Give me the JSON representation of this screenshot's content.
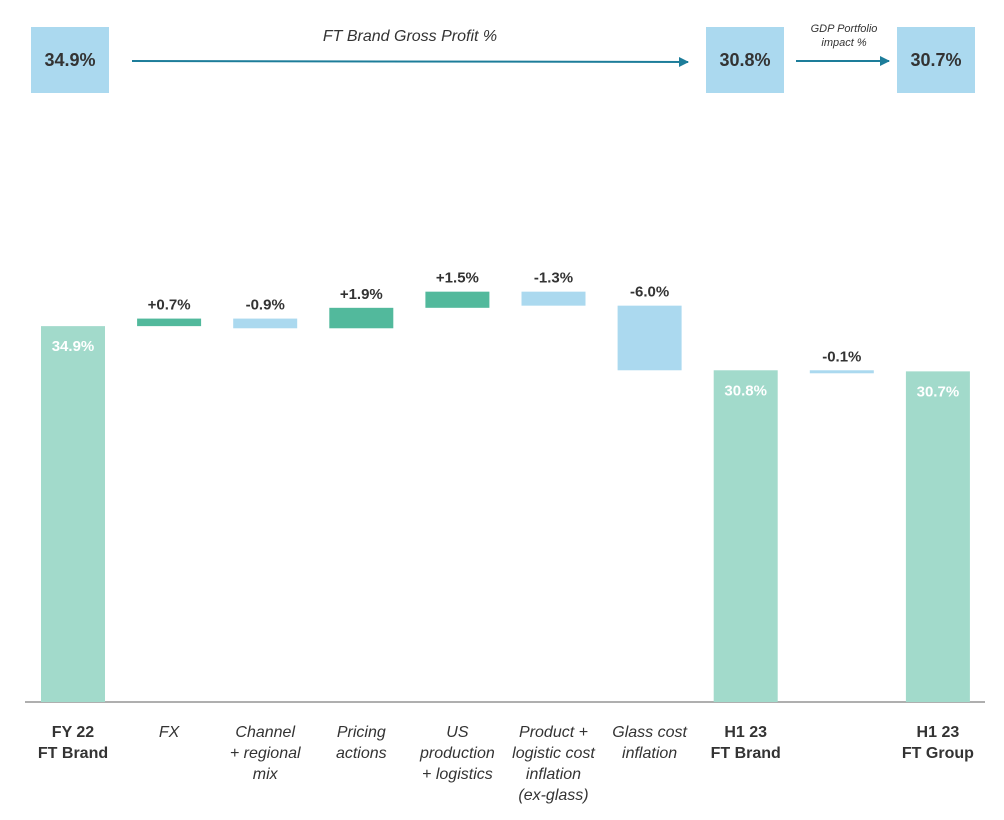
{
  "header": {
    "start_value": "34.9%",
    "brand_caption": "FT Brand Gross Profit %",
    "mid_value": "30.8%",
    "portfolio_caption_line1": "GDP Portfolio",
    "portfolio_caption_line2": "impact %",
    "end_value": "30.7%"
  },
  "colors": {
    "total": "#a2dacb",
    "increase": "#52b99c",
    "decrease": "#abd9ef",
    "arrow": "#1d7d9a",
    "axis": "#7f7f7f",
    "text": "#333333",
    "total_label": "#ffffff"
  },
  "chart_data": {
    "type": "bar",
    "subtype": "waterfall",
    "ylim": [
      0,
      38
    ],
    "categories": [
      {
        "lines": [
          "FY 22",
          "FT Brand"
        ],
        "italic": false
      },
      {
        "lines": [
          "FX"
        ],
        "italic": true
      },
      {
        "lines": [
          "Channel",
          "+ regional",
          "mix"
        ],
        "italic": true
      },
      {
        "lines": [
          "Pricing",
          "actions"
        ],
        "italic": true
      },
      {
        "lines": [
          "US",
          "production",
          "+ logistics"
        ],
        "italic": true
      },
      {
        "lines": [
          "Product +",
          "logistic cost",
          "inflation",
          "(ex-glass)"
        ],
        "italic": true
      },
      {
        "lines": [
          "Glass cost",
          "inflation"
        ],
        "italic": true
      },
      {
        "lines": [
          "H1 23",
          "FT Brand"
        ],
        "italic": false
      },
      {
        "lines": [],
        "italic": true
      },
      {
        "lines": [
          "H1 23",
          "FT Group"
        ],
        "italic": false
      }
    ],
    "steps": [
      {
        "kind": "total",
        "value": 34.9,
        "label": "34.9%"
      },
      {
        "kind": "delta",
        "value": 0.7,
        "label": "+0.7%"
      },
      {
        "kind": "delta",
        "value": -0.9,
        "label": "-0.9%"
      },
      {
        "kind": "delta",
        "value": 1.9,
        "label": "+1.9%"
      },
      {
        "kind": "delta",
        "value": 1.5,
        "label": "+1.5%"
      },
      {
        "kind": "delta",
        "value": -1.3,
        "label": "-1.3%"
      },
      {
        "kind": "delta",
        "value": -6.0,
        "label": "-6.0%"
      },
      {
        "kind": "total",
        "value": 30.8,
        "label": "30.8%"
      },
      {
        "kind": "delta",
        "value": -0.1,
        "label": "-0.1%"
      },
      {
        "kind": "total",
        "value": 30.7,
        "label": "30.7%"
      }
    ]
  }
}
